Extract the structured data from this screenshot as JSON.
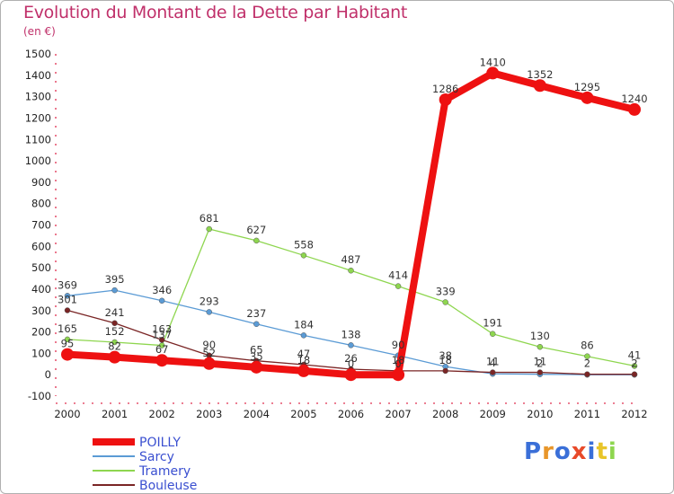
{
  "chart_data": {
    "type": "line",
    "title": "Evolution du Montant de la Dette par Habitant",
    "subtitle": "(en €)",
    "x": [
      "2000",
      "2001",
      "2002",
      "2003",
      "2004",
      "2005",
      "2006",
      "2007",
      "2008",
      "2009",
      "2010",
      "2011",
      "2012"
    ],
    "ylim": [
      -100,
      1500
    ],
    "yticks": [
      -100,
      0,
      100,
      200,
      300,
      400,
      500,
      600,
      700,
      800,
      900,
      1000,
      1100,
      1200,
      1300,
      1400,
      1500
    ],
    "grid": false,
    "legend_position": "bottom-left",
    "series": [
      {
        "name": "POILLY",
        "color": "#ee1111",
        "values": [
          95,
          82,
          67,
          52,
          35,
          18,
          0,
          0,
          1286,
          1410,
          1352,
          1295,
          1240
        ]
      },
      {
        "name": "Sarcy",
        "color": "#5b9bd5",
        "values": [
          369,
          395,
          346,
          293,
          237,
          184,
          138,
          90,
          38,
          4,
          2,
          0,
          0
        ]
      },
      {
        "name": "Tramery",
        "color": "#8ed64f",
        "values": [
          165,
          152,
          137,
          681,
          627,
          558,
          487,
          414,
          339,
          191,
          130,
          86,
          41
        ]
      },
      {
        "name": "Bouleuse",
        "color": "#7a2525",
        "values": [
          301,
          241,
          163,
          90,
          65,
          47,
          26,
          18,
          18,
          11,
          11,
          2,
          2
        ]
      }
    ],
    "data_labels": [
      {
        "series": 0,
        "labels": [
          "95",
          "82",
          "67",
          "52",
          "35",
          "18",
          "0",
          "0",
          "1286",
          "1410",
          "1352",
          "1295",
          "1240"
        ]
      },
      {
        "series": 1,
        "labels": [
          "369",
          "395",
          "346",
          "293",
          "237",
          "184",
          "138",
          "90",
          "38",
          "4",
          "2",
          "",
          ""
        ]
      },
      {
        "series": 2,
        "labels": [
          "165",
          "152",
          "137",
          "681",
          "627",
          "558",
          "487",
          "414",
          "339",
          "191",
          "130",
          "86",
          "41"
        ]
      },
      {
        "series": 3,
        "labels": [
          "301",
          "241",
          "163",
          "90",
          "65",
          "47",
          "26",
          "18",
          "18",
          "11",
          "11",
          "2",
          "2"
        ]
      }
    ]
  },
  "logo": {
    "text": "Proxiti"
  }
}
